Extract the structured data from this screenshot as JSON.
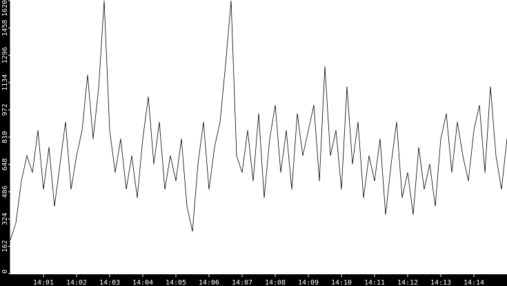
{
  "chart_data": {
    "type": "line",
    "title": "",
    "xlabel": "",
    "ylabel": "",
    "ylim": [
      0,
      1620
    ],
    "xlim": [
      "14:00:00",
      "14:15:00"
    ],
    "yticks": [
      "0",
      "162",
      "324",
      "486",
      "648",
      "810",
      "972",
      "1134",
      "1296",
      "1458",
      "1620"
    ],
    "xticks": [
      "14:01",
      "14:02",
      "14:03",
      "14:04",
      "14:05",
      "14:06",
      "14:07",
      "14:08",
      "14:09",
      "14:10",
      "14:11",
      "14:12",
      "14:13",
      "14:14"
    ],
    "grid": false,
    "colors": {
      "background": "#000000",
      "plot": "#ffffff",
      "line": "#000000",
      "text": "#ffffff"
    },
    "series": [
      {
        "x": [
          "14:00:00",
          "14:00:10",
          "14:00:20",
          "14:00:30",
          "14:00:40",
          "14:00:50",
          "14:01:00",
          "14:01:10",
          "14:01:20",
          "14:01:30",
          "14:01:40",
          "14:01:50",
          "14:02:00",
          "14:02:10",
          "14:02:20",
          "14:02:30",
          "14:02:40",
          "14:02:50",
          "14:03:00",
          "14:03:10",
          "14:03:20",
          "14:03:30",
          "14:03:40",
          "14:03:50",
          "14:04:00",
          "14:04:10",
          "14:04:20",
          "14:04:30",
          "14:04:40",
          "14:04:50",
          "14:05:00",
          "14:05:10",
          "14:05:20",
          "14:05:30",
          "14:05:40",
          "14:05:50",
          "14:06:00",
          "14:06:10",
          "14:06:20",
          "14:06:30",
          "14:06:40",
          "14:06:50",
          "14:07:00",
          "14:07:10",
          "14:07:20",
          "14:07:30",
          "14:07:40",
          "14:07:50",
          "14:08:00",
          "14:08:10",
          "14:08:20",
          "14:08:30",
          "14:08:40",
          "14:08:50",
          "14:09:00",
          "14:09:10",
          "14:09:20",
          "14:09:30",
          "14:09:40",
          "14:09:50",
          "14:10:00",
          "14:10:10",
          "14:10:20",
          "14:10:30",
          "14:10:40",
          "14:10:50",
          "14:11:00",
          "14:11:10",
          "14:11:20",
          "14:11:30",
          "14:11:40",
          "14:11:50",
          "14:12:00",
          "14:12:10",
          "14:12:20",
          "14:12:30",
          "14:12:40",
          "14:12:50",
          "14:13:00",
          "14:13:10",
          "14:13:20",
          "14:13:30",
          "14:13:40",
          "14:13:50",
          "14:14:00",
          "14:14:10",
          "14:14:20",
          "14:14:30",
          "14:14:40",
          "14:14:50",
          "14:15:00"
        ],
        "values": [
          200,
          300,
          550,
          700,
          600,
          850,
          500,
          750,
          400,
          650,
          900,
          500,
          700,
          850,
          1180,
          800,
          1100,
          1620,
          850,
          600,
          800,
          500,
          700,
          450,
          800,
          1050,
          650,
          900,
          500,
          700,
          550,
          800,
          400,
          250,
          650,
          900,
          500,
          750,
          900,
          1240,
          1620,
          700,
          600,
          850,
          550,
          950,
          450,
          800,
          1000,
          600,
          850,
          500,
          950,
          700,
          850,
          1000,
          550,
          1230,
          700,
          850,
          500,
          1110,
          650,
          900,
          450,
          700,
          550,
          800,
          350,
          650,
          900,
          450,
          600,
          350,
          750,
          500,
          650,
          400,
          800,
          950,
          600,
          900,
          700,
          550,
          850,
          1000,
          600,
          1110,
          700,
          500,
          800
        ]
      }
    ]
  }
}
